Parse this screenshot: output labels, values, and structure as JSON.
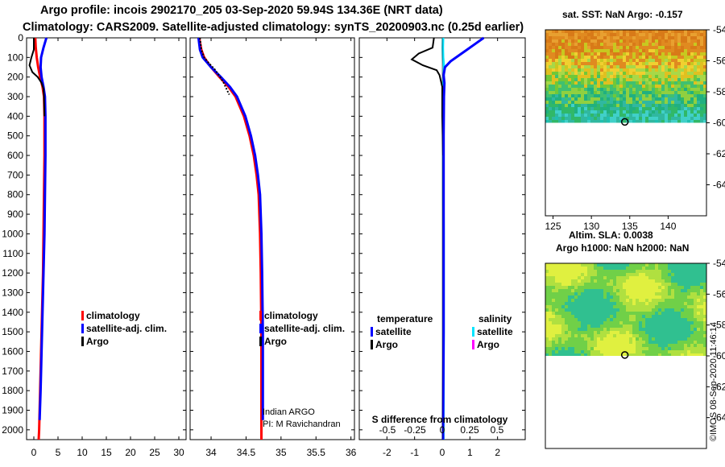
{
  "title_line1": "Argo profile: incois 2902170_205 03-Sep-2020 59.94S 134.36E (NRT data)",
  "title_line2": "Climatology: CARS2009. Satellite-adjusted climatology: synTS_20200903.nc (0.25d earlier)",
  "colors": {
    "climatology": "#ff0000",
    "satellite": "#0000ff",
    "argo": "#000000",
    "sat_salinity": "#00e5ff",
    "argo_salinity": "#ff00ff"
  },
  "chart_data": [
    {
      "type": "line",
      "name": "temperature-profile",
      "ylim": [
        2050,
        0
      ],
      "y_ticks": [
        0,
        100,
        200,
        300,
        400,
        500,
        600,
        700,
        800,
        900,
        1000,
        1100,
        1200,
        1300,
        1400,
        1500,
        1600,
        1700,
        1800,
        1900,
        2000
      ],
      "y_tick_labels": [
        "0",
        "100",
        "200",
        "300",
        "400",
        "500",
        "600",
        "700",
        "800",
        "900",
        "1000",
        "1100",
        "1200",
        "1300",
        "1400",
        "1500",
        "1600",
        "1700",
        "1800",
        "1900",
        "2000"
      ],
      "xlim": [
        -1.5,
        31.5
      ],
      "x_ticks": [
        0,
        5,
        10,
        15,
        20,
        25,
        30
      ],
      "x_tick_labels": [
        "0",
        "5",
        "10",
        "15",
        "20",
        "25",
        "30"
      ],
      "legend": [
        "climatology",
        "satellite-adj. clim.",
        "Argo"
      ],
      "series": [
        {
          "name": "climatology",
          "points": [
            [
              0.3,
              0
            ],
            [
              0.4,
              50
            ],
            [
              0.6,
              100
            ],
            [
              0.9,
              150
            ],
            [
              1.3,
              200
            ],
            [
              1.8,
              250
            ],
            [
              2.1,
              300
            ],
            [
              2.2,
              400
            ],
            [
              2.2,
              600
            ],
            [
              2.1,
              800
            ],
            [
              2.0,
              1000
            ],
            [
              1.9,
              1200
            ],
            [
              1.7,
              1400
            ],
            [
              1.5,
              1600
            ],
            [
              1.3,
              1800
            ],
            [
              1.1,
              2000
            ],
            [
              1.0,
              2050
            ]
          ]
        },
        {
          "name": "satellite-adj. clim.",
          "points": [
            [
              2.6,
              0
            ],
            [
              2.0,
              50
            ],
            [
              1.5,
              100
            ],
            [
              1.4,
              150
            ],
            [
              1.6,
              200
            ],
            [
              2.0,
              250
            ],
            [
              2.3,
              300
            ],
            [
              2.4,
              400
            ],
            [
              2.4,
              600
            ],
            [
              2.3,
              800
            ],
            [
              2.2,
              1000
            ],
            [
              2.0,
              1200
            ],
            [
              1.8,
              1400
            ],
            [
              1.6,
              1600
            ],
            [
              1.4,
              1800
            ],
            [
              1.2,
              1950
            ]
          ]
        },
        {
          "name": "Argo",
          "points": [
            [
              0.0,
              0
            ],
            [
              0.0,
              60
            ],
            [
              -0.5,
              100
            ],
            [
              -0.9,
              140
            ],
            [
              -0.3,
              175
            ],
            [
              0.8,
              200
            ],
            [
              1.6,
              230
            ],
            [
              2.0,
              260
            ],
            [
              2.1,
              300
            ],
            [
              2.2,
              400
            ]
          ]
        }
      ]
    },
    {
      "type": "line",
      "name": "salinity-profile",
      "ylim": [
        2050,
        0
      ],
      "xlim": [
        33.7,
        36.05
      ],
      "x_ticks": [
        34,
        34.5,
        35,
        35.5,
        36
      ],
      "x_tick_labels": [
        "34",
        "34.5",
        "35",
        "35.5",
        "36"
      ],
      "legend": [
        "climatology",
        "satellite-adj. clim.",
        "Argo"
      ],
      "annotation": [
        "Indian ARGO",
        "PI: M Ravichandran"
      ],
      "series": [
        {
          "name": "climatology",
          "points": [
            [
              33.83,
              0
            ],
            [
              33.86,
              60
            ],
            [
              33.9,
              100
            ],
            [
              34.0,
              150
            ],
            [
              34.12,
              200
            ],
            [
              34.25,
              250
            ],
            [
              34.35,
              300
            ],
            [
              34.47,
              400
            ],
            [
              34.55,
              500
            ],
            [
              34.61,
              600
            ],
            [
              34.65,
              700
            ],
            [
              34.68,
              800
            ],
            [
              34.7,
              1000
            ],
            [
              34.71,
              1200
            ],
            [
              34.72,
              1500
            ],
            [
              34.72,
              1800
            ],
            [
              34.72,
              2050
            ]
          ]
        },
        {
          "name": "satellite-adj. clim.",
          "points": [
            [
              33.82,
              0
            ],
            [
              33.84,
              60
            ],
            [
              33.88,
              100
            ],
            [
              34.0,
              150
            ],
            [
              34.14,
              200
            ],
            [
              34.27,
              250
            ],
            [
              34.37,
              300
            ],
            [
              34.49,
              400
            ],
            [
              34.57,
              500
            ],
            [
              34.63,
              600
            ],
            [
              34.67,
              700
            ],
            [
              34.7,
              800
            ],
            [
              34.72,
              1000
            ],
            [
              34.73,
              1200
            ],
            [
              34.74,
              1500
            ],
            [
              34.74,
              1800
            ],
            [
              34.74,
              1950
            ]
          ]
        },
        {
          "name": "Argo",
          "points": [
            [
              33.84,
              0
            ],
            [
              33.86,
              60
            ],
            [
              33.9,
              100
            ],
            [
              33.97,
              130
            ],
            [
              34.05,
              160
            ],
            [
              34.13,
              200
            ],
            [
              34.18,
              230
            ],
            [
              34.22,
              260
            ],
            [
              34.26,
              290
            ]
          ]
        }
      ]
    },
    {
      "type": "line",
      "name": "difference-profile",
      "ylim": [
        2050,
        0
      ],
      "xlim": [
        -3,
        3
      ],
      "x_ticks": [
        -2,
        -1,
        0,
        1,
        2
      ],
      "x_tick_labels": [
        "-2",
        "-1",
        "0",
        "1",
        "2"
      ],
      "x2_ticks": [
        -0.5,
        -0.25,
        0,
        0.25,
        0.5
      ],
      "x2_tick_labels": [
        "-0.5",
        "-0.25",
        "0",
        "0.25",
        "0.5"
      ],
      "xlabel": "S difference from climatology",
      "legend": {
        "temperature": [
          "satellite",
          "Argo"
        ],
        "salinity": [
          "satellite",
          "Argo"
        ]
      },
      "legend_titles": [
        "temperature",
        "salinity"
      ],
      "series": [
        {
          "name": "temperature satellite",
          "points": [
            [
              1.5,
              0
            ],
            [
              1.2,
              30
            ],
            [
              0.9,
              60
            ],
            [
              0.6,
              90
            ],
            [
              0.3,
              120
            ],
            [
              0.1,
              150
            ],
            [
              0.05,
              190
            ],
            [
              0.08,
              230
            ],
            [
              0.06,
              300
            ],
            [
              0.05,
              500
            ],
            [
              0.05,
              1000
            ],
            [
              0.05,
              1500
            ],
            [
              0.03,
              2000
            ],
            [
              0.03,
              2050
            ]
          ]
        },
        {
          "name": "temperature Argo",
          "points": [
            [
              -0.3,
              0
            ],
            [
              -0.35,
              50
            ],
            [
              -0.85,
              80
            ],
            [
              -1.1,
              110
            ],
            [
              -0.7,
              140
            ],
            [
              -0.2,
              165
            ],
            [
              -0.1,
              190
            ],
            [
              0.0,
              250
            ],
            [
              0.0,
              400
            ],
            [
              0.03,
              600
            ]
          ]
        },
        {
          "name": "salinity satellite",
          "points": [
            [
              0.03,
              0
            ],
            [
              0.02,
              50
            ],
            [
              0.03,
              100
            ],
            [
              0.06,
              150
            ],
            [
              0.05,
              200
            ],
            [
              0.04,
              300
            ],
            [
              0.04,
              500
            ],
            [
              0.04,
              800
            ],
            [
              0.05,
              1000
            ],
            [
              0.05,
              1500
            ],
            [
              0.04,
              2000
            ],
            [
              0.04,
              2050
            ]
          ]
        }
      ]
    },
    {
      "type": "heatmap",
      "name": "sst-map",
      "title": "sat. SST: NaN Argo: -0.157",
      "xlim": [
        124,
        145
      ],
      "ylim": [
        -66,
        -54
      ],
      "x_ticks": [
        125,
        130,
        135,
        140
      ],
      "x_tick_labels": [
        "125",
        "130",
        "135",
        "140"
      ],
      "y_ticks": [
        -54,
        -56,
        -58,
        -60,
        -62,
        -64
      ],
      "y_tick_labels": [
        "-54",
        "-56",
        "-58",
        "-60",
        "-62",
        "-64"
      ],
      "data_extent_lat": [
        -60,
        -54
      ],
      "float_position": [
        134.36,
        -59.94
      ]
    },
    {
      "type": "heatmap",
      "name": "sla-map",
      "title": [
        "Altim. SLA: 0.0038",
        "Argo h1000: NaN h2000: NaN"
      ],
      "xlim": [
        124,
        145
      ],
      "ylim": [
        -66,
        -54
      ],
      "y_ticks": [
        -54,
        -56,
        -58,
        -60,
        -62,
        -64
      ],
      "y_tick_labels": [
        "-54",
        "-56",
        "-58",
        "-60",
        "-62",
        "-64"
      ],
      "data_extent_lat": [
        -60,
        -54
      ],
      "float_position": [
        134.36,
        -59.94
      ]
    }
  ],
  "credit": "©IMOS 08-Sep-2020 11:46:14"
}
